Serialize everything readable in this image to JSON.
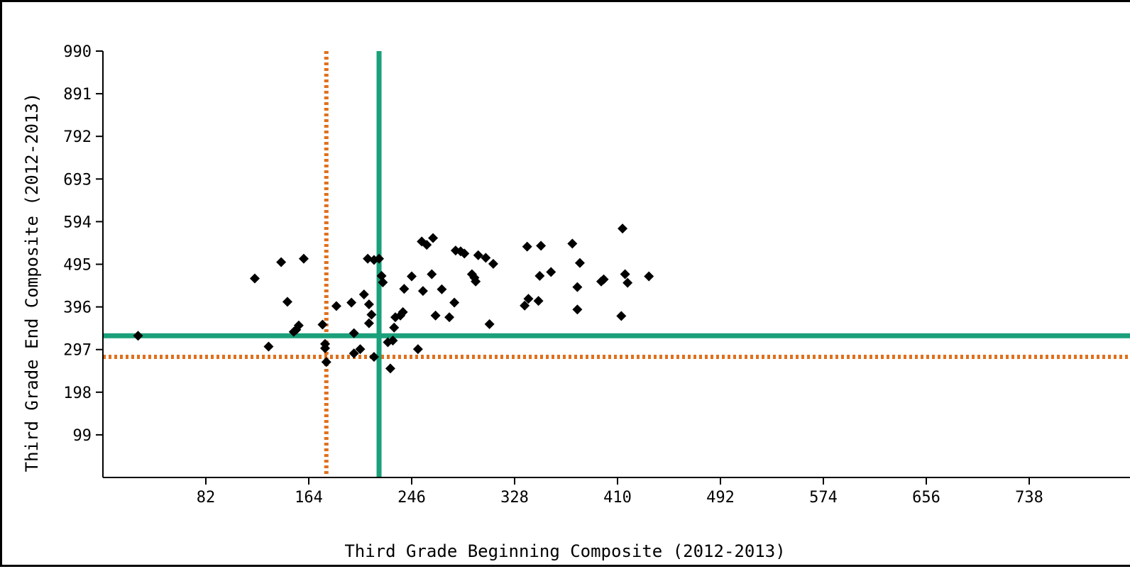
{
  "chart_data": {
    "type": "scatter",
    "xlabel": "Third Grade Beginning Composite (2012-2013)",
    "ylabel": "Third Grade End Composite (2012-2013)",
    "xlim": [
      0,
      820
    ],
    "ylim": [
      0,
      990
    ],
    "x_ticks": [
      "82",
      "164",
      "246",
      "328",
      "410",
      "492",
      "574",
      "656",
      "738"
    ],
    "y_ticks": [
      "990",
      "891",
      "792",
      "693",
      "594",
      "495",
      "396",
      "297",
      "198",
      "99"
    ],
    "grid": false,
    "reference_lines": [
      {
        "orientation": "vertical",
        "value": 178,
        "style": "dotted",
        "color": "#e0701c"
      },
      {
        "orientation": "horizontal",
        "value": 280,
        "style": "dotted",
        "color": "#e0701c"
      },
      {
        "orientation": "vertical",
        "value": 220,
        "style": "solid",
        "color": "#1aa07a"
      },
      {
        "orientation": "horizontal",
        "value": 329,
        "style": "solid",
        "color": "#1aa07a"
      }
    ],
    "marker_color": "#000000",
    "points": [
      [
        28,
        329
      ],
      [
        121,
        462
      ],
      [
        142,
        500
      ],
      [
        160,
        508
      ],
      [
        147,
        408
      ],
      [
        152,
        338
      ],
      [
        154,
        343
      ],
      [
        156,
        353
      ],
      [
        132,
        304
      ],
      [
        175,
        355
      ],
      [
        177,
        310
      ],
      [
        177,
        300
      ],
      [
        178,
        268
      ],
      [
        186,
        398
      ],
      [
        198,
        406
      ],
      [
        200,
        335
      ],
      [
        200,
        288
      ],
      [
        205,
        298
      ],
      [
        208,
        425
      ],
      [
        211,
        508
      ],
      [
        212,
        402
      ],
      [
        212,
        358
      ],
      [
        214,
        378
      ],
      [
        216,
        505
      ],
      [
        216,
        280
      ],
      [
        220,
        508
      ],
      [
        222,
        468
      ],
      [
        223,
        453
      ],
      [
        227,
        314
      ],
      [
        229,
        253
      ],
      [
        231,
        318
      ],
      [
        232,
        348
      ],
      [
        233,
        372
      ],
      [
        237,
        376
      ],
      [
        239,
        384
      ],
      [
        240,
        438
      ],
      [
        246,
        467
      ],
      [
        251,
        298
      ],
      [
        255,
        433
      ],
      [
        254,
        548
      ],
      [
        258,
        540
      ],
      [
        262,
        472
      ],
      [
        263,
        556
      ],
      [
        265,
        376
      ],
      [
        270,
        437
      ],
      [
        276,
        372
      ],
      [
        280,
        406
      ],
      [
        281,
        527
      ],
      [
        285,
        525
      ],
      [
        288,
        520
      ],
      [
        294,
        472
      ],
      [
        296,
        464
      ],
      [
        297,
        455
      ],
      [
        299,
        516
      ],
      [
        305,
        510
      ],
      [
        308,
        356
      ],
      [
        311,
        496
      ],
      [
        336,
        399
      ],
      [
        338,
        536
      ],
      [
        339,
        415
      ],
      [
        347,
        410
      ],
      [
        348,
        468
      ],
      [
        349,
        538
      ],
      [
        357,
        477
      ],
      [
        374,
        543
      ],
      [
        378,
        442
      ],
      [
        378,
        390
      ],
      [
        380,
        498
      ],
      [
        397,
        455
      ],
      [
        399,
        460
      ],
      [
        414,
        578
      ],
      [
        413,
        375
      ],
      [
        416,
        472
      ],
      [
        418,
        452
      ],
      [
        435,
        467
      ]
    ]
  }
}
